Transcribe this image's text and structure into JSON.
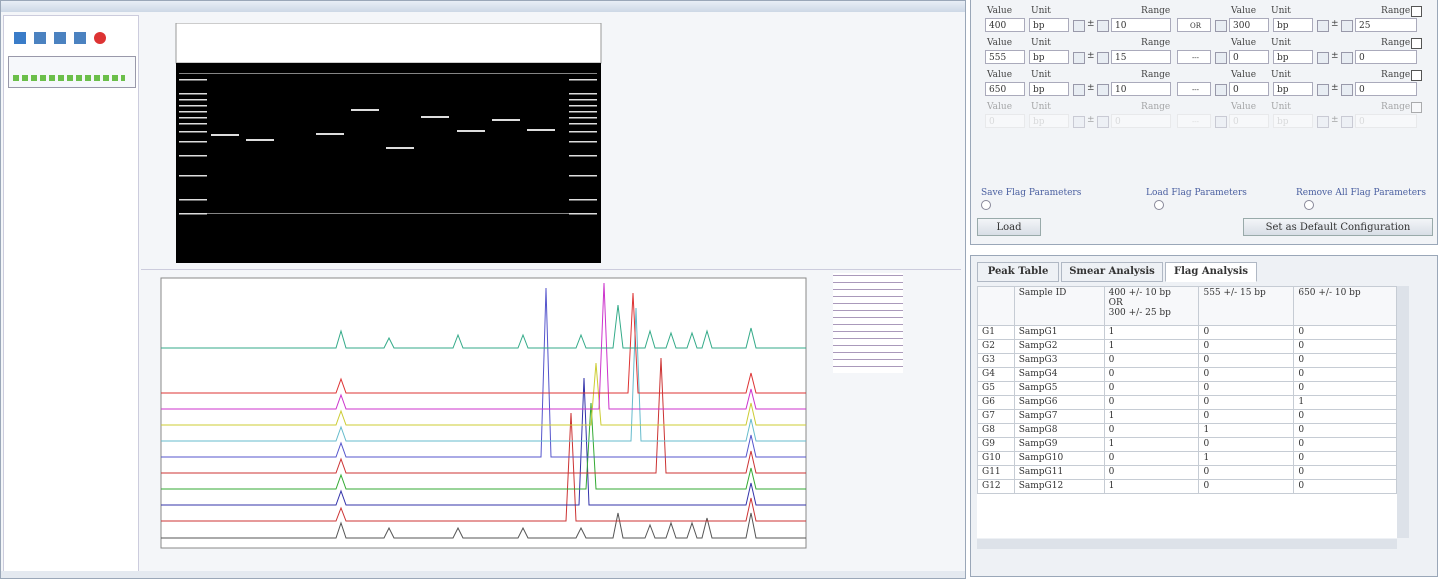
{
  "flag_parameters": {
    "labels": {
      "value": "Value",
      "unit": "Unit",
      "range": "Range",
      "pm": "±"
    },
    "rows": [
      {
        "value": 400,
        "unit": "bp",
        "range": 10,
        "operator": "OR",
        "value2": 300,
        "unit2": "bp",
        "range2": 25
      },
      {
        "value": 555,
        "unit": "bp",
        "range": 15,
        "operator": "---",
        "value2": 0,
        "unit2": "bp",
        "range2": 0
      },
      {
        "value": 650,
        "unit": "bp",
        "range": 10,
        "operator": "---",
        "value2": 0,
        "unit2": "bp",
        "range2": 0
      },
      {
        "value": 0,
        "unit": "bp",
        "range": 0,
        "operator": "---",
        "value2": 0,
        "unit2": "bp",
        "range2": 0
      }
    ],
    "links": [
      "Save Flag Parameters",
      "Load Flag Parameters",
      "Remove All Flag Parameters"
    ],
    "buttons": {
      "load": "Load",
      "default": "Set as Default Configuration"
    }
  },
  "tabs": [
    "Peak Table",
    "Smear Analysis",
    "Flag Analysis"
  ],
  "table": {
    "headers": [
      "",
      "Sample ID",
      "400 +/- 10 bp\nOR\n300 +/- 25 bp",
      "555 +/- 15 bp",
      "650 +/- 10 bp"
    ],
    "rows": [
      [
        "G1",
        "SampG1",
        1,
        0,
        0
      ],
      [
        "G2",
        "SampG2",
        1,
        0,
        0
      ],
      [
        "G3",
        "SampG3",
        0,
        0,
        0
      ],
      [
        "G4",
        "SampG4",
        0,
        0,
        0
      ],
      [
        "G5",
        "SampG5",
        0,
        0,
        0
      ],
      [
        "G6",
        "SampG6",
        0,
        0,
        1
      ],
      [
        "G7",
        "SampG7",
        1,
        0,
        0
      ],
      [
        "G8",
        "SampG8",
        0,
        1,
        0
      ],
      [
        "G9",
        "SampG9",
        1,
        0,
        0
      ],
      [
        "G10",
        "SampG10",
        0,
        1,
        0
      ],
      [
        "G11",
        "SampG11",
        0,
        0,
        0
      ],
      [
        "G12",
        "SampG12",
        1,
        0,
        0
      ]
    ]
  }
}
